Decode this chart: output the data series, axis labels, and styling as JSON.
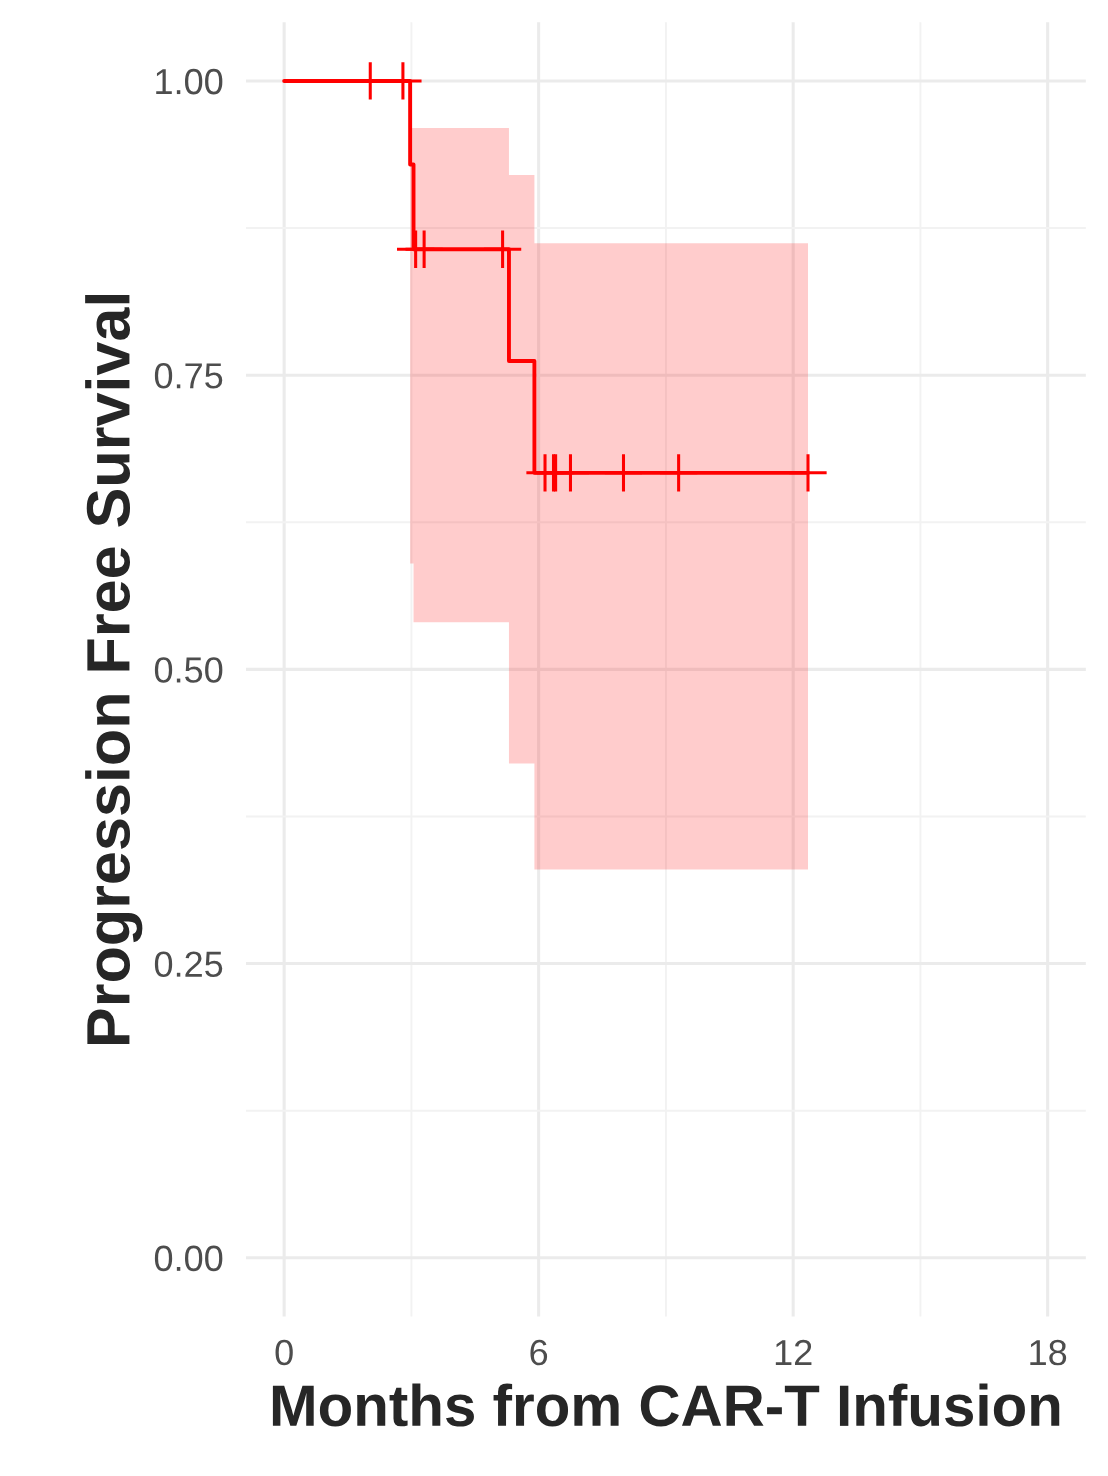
{
  "chart_data": {
    "type": "step",
    "xlabel": "Months from CAR-T Infusion",
    "ylabel": "Progression Free Survival",
    "series": [
      {
        "color": "#ff0000",
        "x": [
          0,
          2.97,
          3.05,
          5.3,
          5.9,
          12.35
        ],
        "values": [
          1.0,
          0.929,
          0.857,
          0.762,
          0.667,
          0.667
        ],
        "lower": [
          null,
          0.59,
          0.54,
          0.42,
          0.33,
          0.33
        ],
        "upper": [
          null,
          0.96,
          0.96,
          0.92,
          0.862,
          0.862
        ]
      },
      {
        "type": "scatter",
        "color": "#ff0000",
        "marker": "cross",
        "x": [
          2.03,
          2.8,
          3.1,
          3.3,
          5.15,
          6.15,
          6.35,
          6.4,
          6.75,
          8.0,
          9.3,
          12.35
        ],
        "values": [
          1.0,
          1.0,
          0.857,
          0.857,
          0.857,
          0.667,
          0.667,
          0.667,
          0.667,
          0.667,
          0.667,
          0.667
        ]
      }
    ],
    "xlim": [
      -0.9,
      18.9
    ],
    "ylim": [
      -0.05,
      1.05
    ],
    "xticks": [
      0,
      6,
      12,
      18
    ],
    "yticks": [
      {
        "value": 0,
        "label": "0.00"
      },
      {
        "value": 0.25,
        "label": "0.25"
      },
      {
        "value": 0.5,
        "label": "0.50"
      },
      {
        "value": 0.75,
        "label": "0.75"
      },
      {
        "value": 1.0,
        "label": "1.00"
      }
    ],
    "grid": true,
    "legend": false
  }
}
